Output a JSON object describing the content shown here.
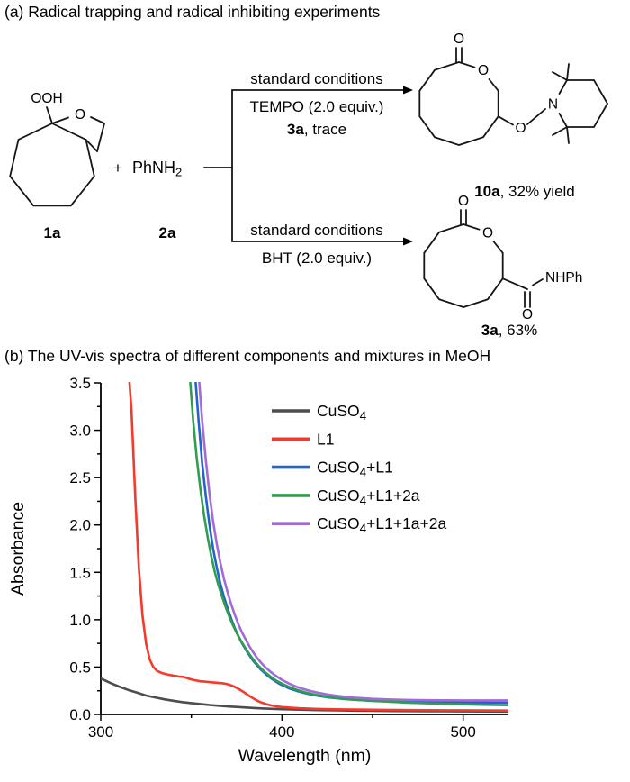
{
  "panel_a": {
    "title": "(a) Radical trapping and radical inhibiting experiments",
    "colors": {
      "additive_red": "#8e1b1b",
      "amine_blue": "#2453cf",
      "oxygen_red": "#e8231a"
    },
    "compound_1a": {
      "peroxide_label": "OOH",
      "ring_oxygen": "O",
      "id": "1a"
    },
    "plus_sign": "+",
    "compound_2a": {
      "formula_main": "PhNH",
      "formula_sub": "2",
      "id": "2a"
    },
    "top_arrow": {
      "conditions": "standard conditions",
      "additive": "TEMPO (2.0 equiv.)",
      "result_id": "3a",
      "result_rest": ", trace"
    },
    "bottom_arrow": {
      "conditions": "standard conditions",
      "additive": "BHT (2.0 equiv.)"
    },
    "product_10a": {
      "carbonyl_oxygen": "O",
      "ester_oxygen": "O",
      "linker_oxygen": "O",
      "nitrogen": "N",
      "id": "10a",
      "yield_text": ", 32% yield"
    },
    "product_3a": {
      "carbonyl_oxygen": "O",
      "ester_oxygen": "O",
      "amide_oxygen": "O",
      "amide_nh": "NHPh",
      "id": "3a",
      "yield_text": ", 63%"
    }
  },
  "panel_b": {
    "title": "(b) The UV-vis spectra of different components and mixtures in MeOH"
  },
  "chart_data": {
    "type": "line",
    "title": "",
    "xlabel": "Wavelength (nm)",
    "ylabel": "Absorbance",
    "xlim": [
      300,
      525
    ],
    "ylim": [
      0,
      3.5
    ],
    "grid": false,
    "legend_position": "upper-center-right-inside",
    "xticks": {
      "values": [
        300,
        400,
        500
      ],
      "labels": [
        "300",
        "400",
        "500"
      ],
      "minor": [
        350,
        450
      ]
    },
    "yticks": {
      "values": [
        0,
        0.5,
        1.0,
        1.5,
        2.0,
        2.5,
        3.0,
        3.5
      ],
      "labels": [
        "0.0",
        "0.5",
        "1.0",
        "1.5",
        "2.0",
        "2.5",
        "3.0",
        "3.5"
      ],
      "minor": [
        0.25,
        0.75,
        1.25,
        1.75,
        2.25,
        2.75,
        3.25
      ]
    },
    "series": [
      {
        "name": "CuSO4",
        "label_segments": [
          {
            "t": "CuSO"
          },
          {
            "t": "4",
            "sub": true
          }
        ],
        "color": "#4d4d4d",
        "points": [
          [
            300,
            0.38
          ],
          [
            305,
            0.335
          ],
          [
            310,
            0.295
          ],
          [
            315,
            0.26
          ],
          [
            320,
            0.23
          ],
          [
            325,
            0.2
          ],
          [
            330,
            0.18
          ],
          [
            335,
            0.16
          ],
          [
            340,
            0.145
          ],
          [
            345,
            0.13
          ],
          [
            350,
            0.12
          ],
          [
            355,
            0.11
          ],
          [
            360,
            0.1
          ],
          [
            365,
            0.092
          ],
          [
            370,
            0.085
          ],
          [
            375,
            0.079
          ],
          [
            380,
            0.073
          ],
          [
            385,
            0.068
          ],
          [
            390,
            0.063
          ],
          [
            395,
            0.059
          ],
          [
            400,
            0.055
          ],
          [
            410,
            0.05
          ],
          [
            420,
            0.046
          ],
          [
            430,
            0.043
          ],
          [
            440,
            0.04
          ],
          [
            450,
            0.038
          ],
          [
            460,
            0.036
          ],
          [
            470,
            0.035
          ],
          [
            480,
            0.034
          ],
          [
            490,
            0.033
          ],
          [
            500,
            0.032
          ],
          [
            510,
            0.031
          ],
          [
            525,
            0.03
          ]
        ]
      },
      {
        "name": "L1",
        "label_segments": [
          {
            "t": "L1"
          }
        ],
        "color": "#f4392d",
        "points": [
          [
            300,
            4
          ],
          [
            314,
            4
          ],
          [
            317,
            3.2
          ],
          [
            319,
            2.3
          ],
          [
            321,
            1.55
          ],
          [
            323,
            1.05
          ],
          [
            325,
            0.75
          ],
          [
            327,
            0.58
          ],
          [
            329,
            0.5
          ],
          [
            331,
            0.46
          ],
          [
            334,
            0.435
          ],
          [
            337,
            0.42
          ],
          [
            340,
            0.41
          ],
          [
            343,
            0.4
          ],
          [
            346,
            0.395
          ],
          [
            349,
            0.375
          ],
          [
            352,
            0.36
          ],
          [
            355,
            0.35
          ],
          [
            358,
            0.345
          ],
          [
            361,
            0.34
          ],
          [
            364,
            0.335
          ],
          [
            367,
            0.33
          ],
          [
            370,
            0.32
          ],
          [
            373,
            0.3
          ],
          [
            376,
            0.27
          ],
          [
            379,
            0.235
          ],
          [
            382,
            0.195
          ],
          [
            385,
            0.16
          ],
          [
            388,
            0.13
          ],
          [
            391,
            0.11
          ],
          [
            394,
            0.095
          ],
          [
            397,
            0.085
          ],
          [
            400,
            0.078
          ],
          [
            405,
            0.07
          ],
          [
            410,
            0.065
          ],
          [
            420,
            0.058
          ],
          [
            430,
            0.054
          ],
          [
            440,
            0.051
          ],
          [
            450,
            0.049
          ],
          [
            470,
            0.046
          ],
          [
            490,
            0.044
          ],
          [
            510,
            0.042
          ],
          [
            525,
            0.041
          ]
        ]
      },
      {
        "name": "CuSO4+L1",
        "label_segments": [
          {
            "t": "CuSO"
          },
          {
            "t": "4",
            "sub": true
          },
          {
            "t": "+L1"
          }
        ],
        "color": "#2263d1",
        "points": [
          [
            300,
            4
          ],
          [
            350,
            4
          ],
          [
            352,
            3.6
          ],
          [
            354,
            3.1
          ],
          [
            356,
            2.65
          ],
          [
            358,
            2.3
          ],
          [
            360,
            2
          ],
          [
            362,
            1.75
          ],
          [
            364,
            1.55
          ],
          [
            366,
            1.38
          ],
          [
            368,
            1.24
          ],
          [
            370,
            1.12
          ],
          [
            372,
            1.01
          ],
          [
            374,
            0.91
          ],
          [
            376,
            0.825
          ],
          [
            378,
            0.75
          ],
          [
            380,
            0.685
          ],
          [
            382,
            0.625
          ],
          [
            384,
            0.57
          ],
          [
            386,
            0.525
          ],
          [
            388,
            0.48
          ],
          [
            390,
            0.445
          ],
          [
            392,
            0.41
          ],
          [
            394,
            0.38
          ],
          [
            396,
            0.355
          ],
          [
            398,
            0.33
          ],
          [
            400,
            0.31
          ],
          [
            404,
            0.275
          ],
          [
            408,
            0.25
          ],
          [
            412,
            0.228
          ],
          [
            416,
            0.21
          ],
          [
            420,
            0.196
          ],
          [
            425,
            0.182
          ],
          [
            430,
            0.171
          ],
          [
            435,
            0.162
          ],
          [
            440,
            0.155
          ],
          [
            450,
            0.145
          ],
          [
            460,
            0.138
          ],
          [
            470,
            0.133
          ],
          [
            480,
            0.13
          ],
          [
            490,
            0.128
          ],
          [
            500,
            0.127
          ],
          [
            510,
            0.126
          ],
          [
            525,
            0.125
          ]
        ]
      },
      {
        "name": "CuSO4+L1+2a",
        "label_segments": [
          {
            "t": "CuSO"
          },
          {
            "t": "4",
            "sub": true
          },
          {
            "t": "+L1+2a"
          }
        ],
        "color": "#2f9e4d",
        "points": [
          [
            300,
            4
          ],
          [
            347,
            4
          ],
          [
            349,
            3.6
          ],
          [
            351,
            3.1
          ],
          [
            353,
            2.7
          ],
          [
            355,
            2.38
          ],
          [
            357,
            2.1
          ],
          [
            359,
            1.87
          ],
          [
            361,
            1.67
          ],
          [
            363,
            1.5
          ],
          [
            365,
            1.36
          ],
          [
            367,
            1.24
          ],
          [
            369,
            1.13
          ],
          [
            371,
            1.03
          ],
          [
            373,
            0.94
          ],
          [
            375,
            0.86
          ],
          [
            377,
            0.79
          ],
          [
            379,
            0.725
          ],
          [
            381,
            0.665
          ],
          [
            383,
            0.61
          ],
          [
            385,
            0.56
          ],
          [
            387,
            0.515
          ],
          [
            389,
            0.475
          ],
          [
            391,
            0.44
          ],
          [
            393,
            0.41
          ],
          [
            395,
            0.38
          ],
          [
            397,
            0.355
          ],
          [
            400,
            0.325
          ],
          [
            404,
            0.29
          ],
          [
            408,
            0.262
          ],
          [
            412,
            0.238
          ],
          [
            416,
            0.219
          ],
          [
            420,
            0.203
          ],
          [
            425,
            0.187
          ],
          [
            430,
            0.174
          ],
          [
            435,
            0.164
          ],
          [
            440,
            0.156
          ],
          [
            450,
            0.143
          ],
          [
            460,
            0.133
          ],
          [
            470,
            0.125
          ],
          [
            480,
            0.118
          ],
          [
            490,
            0.112
          ],
          [
            500,
            0.107
          ],
          [
            510,
            0.103
          ],
          [
            525,
            0.098
          ]
        ]
      },
      {
        "name": "CuSO4+L1+1a+2a",
        "label_segments": [
          {
            "t": "CuSO"
          },
          {
            "t": "4",
            "sub": true
          },
          {
            "t": "+L1+1a+2a"
          }
        ],
        "color": "#a16bd8",
        "points": [
          [
            300,
            4
          ],
          [
            352,
            4
          ],
          [
            354,
            3.6
          ],
          [
            356,
            3.1
          ],
          [
            358,
            2.68
          ],
          [
            360,
            2.33
          ],
          [
            362,
            2.04
          ],
          [
            364,
            1.8
          ],
          [
            366,
            1.6
          ],
          [
            368,
            1.43
          ],
          [
            370,
            1.29
          ],
          [
            372,
            1.16
          ],
          [
            374,
            1.05
          ],
          [
            376,
            0.95
          ],
          [
            378,
            0.865
          ],
          [
            380,
            0.79
          ],
          [
            382,
            0.72
          ],
          [
            384,
            0.66
          ],
          [
            386,
            0.605
          ],
          [
            388,
            0.555
          ],
          [
            390,
            0.515
          ],
          [
            392,
            0.478
          ],
          [
            394,
            0.445
          ],
          [
            396,
            0.415
          ],
          [
            398,
            0.39
          ],
          [
            400,
            0.365
          ],
          [
            404,
            0.325
          ],
          [
            408,
            0.293
          ],
          [
            412,
            0.267
          ],
          [
            416,
            0.246
          ],
          [
            420,
            0.229
          ],
          [
            425,
            0.211
          ],
          [
            430,
            0.197
          ],
          [
            435,
            0.186
          ],
          [
            440,
            0.177
          ],
          [
            450,
            0.165
          ],
          [
            460,
            0.158
          ],
          [
            470,
            0.153
          ],
          [
            480,
            0.15
          ],
          [
            490,
            0.149
          ],
          [
            500,
            0.148
          ],
          [
            510,
            0.148
          ],
          [
            525,
            0.148
          ]
        ]
      }
    ]
  }
}
